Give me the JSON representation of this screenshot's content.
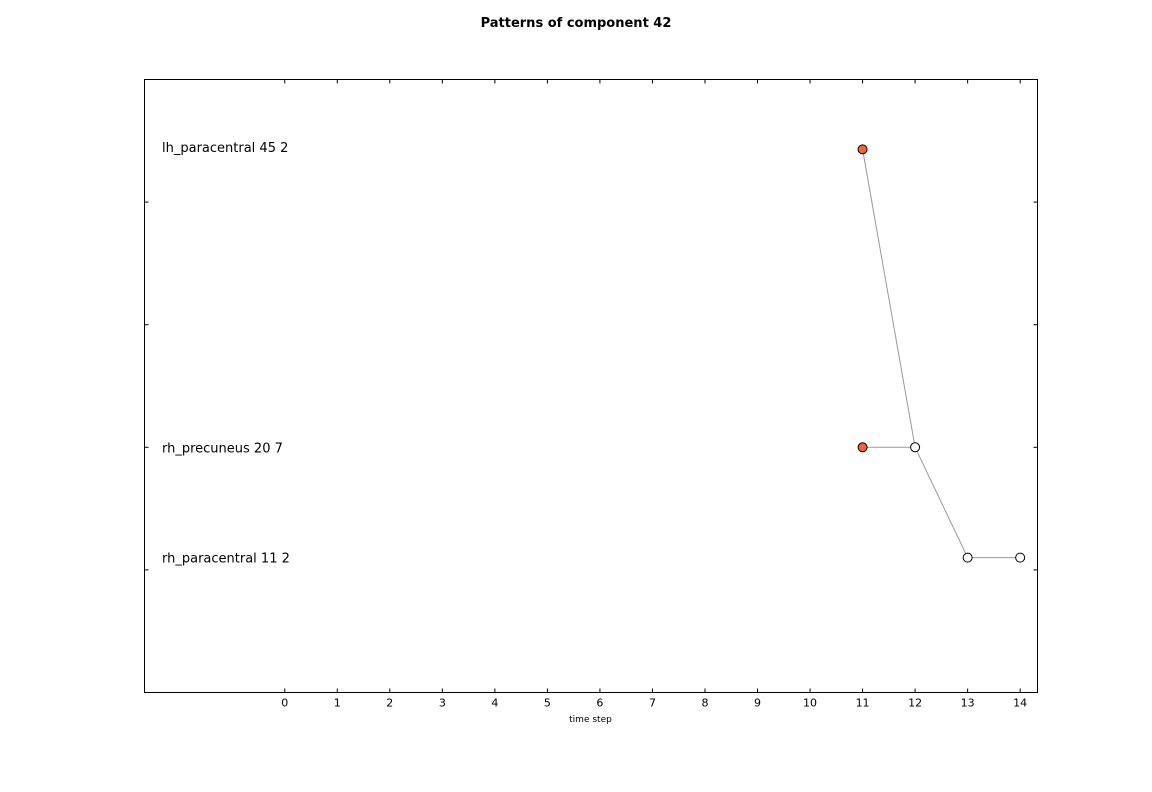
{
  "chart_data": {
    "type": "scatter",
    "title": "Patterns of component 42",
    "xlabel": "time step",
    "ylabel": "",
    "xticks": [
      0,
      1,
      2,
      3,
      4,
      5,
      6,
      7,
      8,
      9,
      10,
      11,
      12,
      13,
      14
    ],
    "xlim": [
      -2.67,
      14.33
    ],
    "ylim": [
      0,
      5
    ],
    "yticks": [
      1,
      2,
      3,
      4
    ],
    "grid": false,
    "row_labels": [
      {
        "text": "lh_paracentral 45 2",
        "y": 4.45
      },
      {
        "text": "rh_precuneus 20 7",
        "y": 2.0
      },
      {
        "text": "rh_paracentral 11 2",
        "y": 1.1
      }
    ],
    "points": [
      {
        "x": 11,
        "y": 4.43,
        "filled": true
      },
      {
        "x": 11,
        "y": 2.0,
        "filled": true
      },
      {
        "x": 12,
        "y": 2.0,
        "filled": false
      },
      {
        "x": 13,
        "y": 1.1,
        "filled": false
      },
      {
        "x": 14,
        "y": 1.1,
        "filled": false
      }
    ],
    "edges": [
      [
        0,
        2
      ],
      [
        1,
        2
      ],
      [
        2,
        3
      ],
      [
        3,
        4
      ]
    ],
    "colors": {
      "filled": "#f0643c",
      "empty": "#ffffff",
      "edge": "#999999"
    }
  }
}
